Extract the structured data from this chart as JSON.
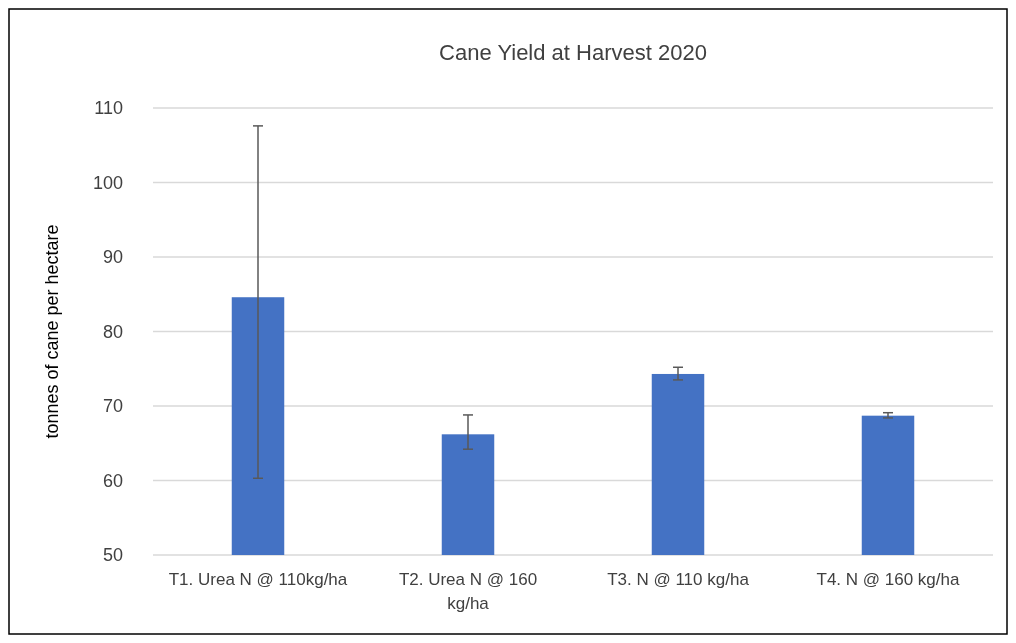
{
  "chart_data": {
    "type": "bar",
    "title": "Cane Yield at Harvest 2020",
    "ylabel": "tonnes of cane per hectare",
    "categories": [
      "T1. Urea N @ 110kg/ha",
      "T2. Urea N @ 160 kg/ha",
      "T3. N @ 110 kg/ha",
      "T4. N @ 160 kg/ha"
    ],
    "values": [
      84.6,
      66.2,
      74.3,
      68.7
    ],
    "errors": [
      [
        60.3,
        107.6
      ],
      [
        64.2,
        68.8
      ],
      [
        73.5,
        75.2
      ],
      [
        68.4,
        69.1
      ]
    ],
    "color": "#4472c4",
    "ylim": [
      50,
      110
    ],
    "yticks": [
      50,
      60,
      70,
      80,
      90,
      100,
      110
    ],
    "grid": "y"
  }
}
